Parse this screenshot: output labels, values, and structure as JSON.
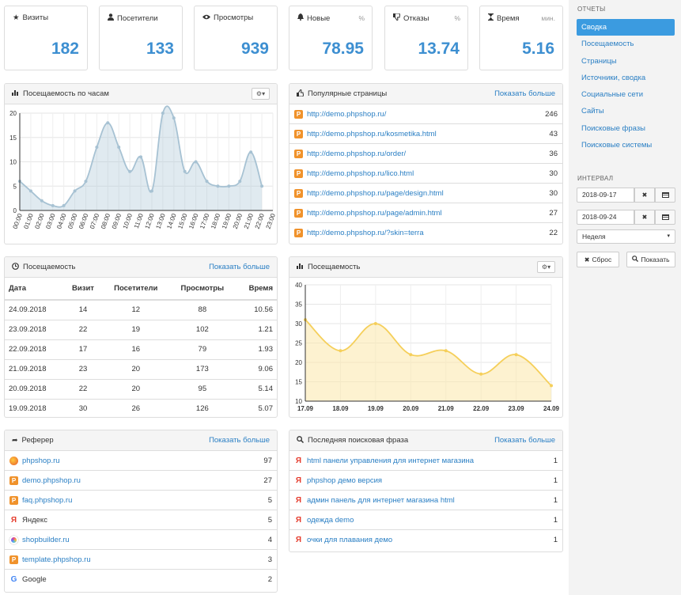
{
  "stats": [
    {
      "icon": "star-icon",
      "label": "Визиты",
      "unit": "",
      "value": "182"
    },
    {
      "icon": "user-icon",
      "label": "Посетители",
      "unit": "",
      "value": "133"
    },
    {
      "icon": "eye-icon",
      "label": "Просмотры",
      "unit": "",
      "value": "939"
    },
    {
      "icon": "bell-icon",
      "label": "Новые",
      "unit": "%",
      "value": "78.95"
    },
    {
      "icon": "thumbs-down-icon",
      "label": "Отказы",
      "unit": "%",
      "value": "13.74"
    },
    {
      "icon": "hourglass-icon",
      "label": "Время",
      "unit": "мин.",
      "value": "5.16"
    }
  ],
  "hourly": {
    "title": "Посещаемость по часам",
    "settings_label": "▾"
  },
  "popular": {
    "title": "Популярные страницы",
    "more": "Показать больше",
    "rows": [
      {
        "url": "http://demo.phpshop.ru/",
        "count": "246"
      },
      {
        "url": "http://demo.phpshop.ru/kosmetika.html",
        "count": "43"
      },
      {
        "url": "http://demo.phpshop.ru/order/",
        "count": "36"
      },
      {
        "url": "http://demo.phpshop.ru/lico.html",
        "count": "30"
      },
      {
        "url": "http://demo.phpshop.ru/page/design.html",
        "count": "30"
      },
      {
        "url": "http://demo.phpshop.ru/page/admin.html",
        "count": "27"
      },
      {
        "url": "http://demo.phpshop.ru/?skin=terra",
        "count": "22"
      }
    ]
  },
  "attendance": {
    "title": "Посещаемость",
    "more": "Показать больше",
    "columns": [
      "Дата",
      "Визит",
      "Посетители",
      "Просмотры",
      "Время"
    ],
    "rows": [
      [
        "24.09.2018",
        "14",
        "12",
        "88",
        "10.56"
      ],
      [
        "23.09.2018",
        "22",
        "19",
        "102",
        "1.21"
      ],
      [
        "22.09.2018",
        "17",
        "16",
        "79",
        "1.93"
      ],
      [
        "21.09.2018",
        "23",
        "20",
        "173",
        "9.06"
      ],
      [
        "20.09.2018",
        "22",
        "20",
        "95",
        "5.14"
      ],
      [
        "19.09.2018",
        "30",
        "26",
        "126",
        "5.07"
      ]
    ]
  },
  "daily": {
    "title": "Посещаемость"
  },
  "referrer": {
    "title": "Реферер",
    "more": "Показать больше",
    "rows": [
      {
        "icon": "firefox-icon",
        "name": "phpshop.ru",
        "count": "97",
        "link": true
      },
      {
        "icon": "phpshop-icon",
        "name": "demo.phpshop.ru",
        "count": "27",
        "link": true
      },
      {
        "icon": "phpshop-icon",
        "name": "faq.phpshop.ru",
        "count": "5",
        "link": true
      },
      {
        "icon": "yandex-icon",
        "name": "Яндекс",
        "count": "5",
        "link": false
      },
      {
        "icon": "shopbuilder-icon",
        "name": "shopbuilder.ru",
        "count": "4",
        "link": true
      },
      {
        "icon": "phpshop-icon",
        "name": "template.phpshop.ru",
        "count": "3",
        "link": true
      },
      {
        "icon": "google-icon",
        "name": "Google",
        "count": "2",
        "link": false
      }
    ]
  },
  "search": {
    "title": "Последняя поисковая фраза",
    "more": "Показать больше",
    "rows": [
      {
        "phrase": "html панели управления для интернет магазина",
        "count": "1"
      },
      {
        "phrase": "phpshop демо версия",
        "count": "1"
      },
      {
        "phrase": "админ панель для интернет магазина html",
        "count": "1"
      },
      {
        "phrase": "одежда demo",
        "count": "1"
      },
      {
        "phrase": "очки для плавания демо",
        "count": "1"
      }
    ]
  },
  "sidebar": {
    "reports_header": "ОТЧЕТЫ",
    "items": [
      "Сводка",
      "Посещаемость",
      "Страницы",
      "Источники, сводка",
      "Социальные сети",
      "Сайты",
      "Поисковые фразы",
      "Поисковые системы"
    ],
    "active": 0,
    "interval_header": "ИНТЕРВАЛ",
    "date_from": "2018-09-17",
    "date_to": "2018-09-24",
    "period": "Неделя",
    "reset_label": "Сброс",
    "show_label": "Показать"
  },
  "chart_data": [
    {
      "type": "area",
      "title": "Посещаемость по часам",
      "x": [
        "00:00",
        "01:00",
        "02:00",
        "03:00",
        "04:00",
        "05:00",
        "06:00",
        "07:00",
        "08:00",
        "09:00",
        "10:00",
        "11:00",
        "12:00",
        "13:00",
        "14:00",
        "15:00",
        "16:00",
        "17:00",
        "18:00",
        "19:00",
        "20:00",
        "21:00",
        "22:00",
        "23:00"
      ],
      "y": [
        6,
        4,
        2,
        1,
        1,
        4,
        6,
        13,
        18,
        13,
        8,
        11,
        4,
        20,
        19,
        8,
        10,
        6,
        5,
        5,
        6,
        12,
        5,
        null
      ],
      "ylim": [
        0,
        20
      ],
      "yticks": [
        0,
        5,
        10,
        15,
        20
      ],
      "color": "#a7c2d3",
      "grid": true
    },
    {
      "type": "area",
      "title": "Посещаемость",
      "x": [
        "17.09",
        "18.09",
        "19.09",
        "20.09",
        "21.09",
        "22.09",
        "23.09",
        "24.09"
      ],
      "y": [
        31,
        23,
        30,
        22,
        23,
        17,
        22,
        14
      ],
      "ylim": [
        10,
        40
      ],
      "yticks": [
        10,
        15,
        20,
        25,
        30,
        35,
        40
      ],
      "color": "#f5cf5a",
      "grid": true
    }
  ]
}
